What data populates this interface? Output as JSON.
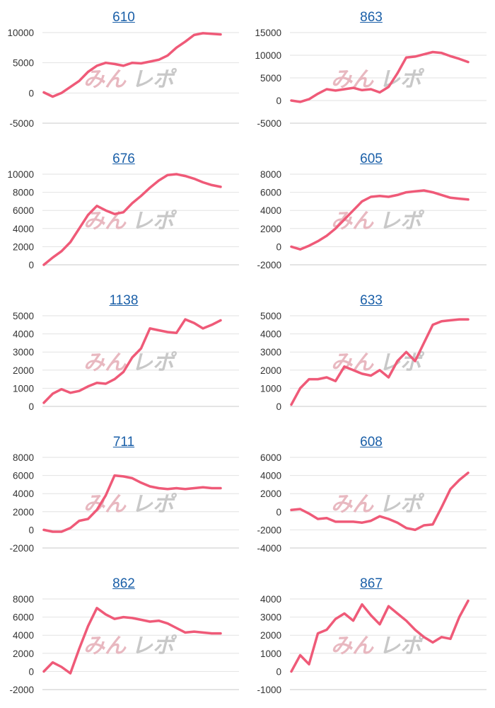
{
  "chart_data": [
    {
      "type": "line",
      "title": "610",
      "ylim": [
        -5000,
        10000
      ],
      "yticks": [
        "10000",
        "5000",
        "0",
        "-5000"
      ],
      "x": [
        0,
        5,
        10,
        15,
        20,
        25,
        30,
        35,
        40,
        45,
        50,
        55,
        60,
        65,
        70,
        75,
        80,
        85,
        90,
        95,
        100
      ],
      "values": [
        100,
        -600,
        0,
        1000,
        2000,
        3500,
        4500,
        5000,
        4800,
        4500,
        5000,
        4900,
        5200,
        5500,
        6200,
        7500,
        8500,
        9600,
        9900,
        9800,
        9700
      ]
    },
    {
      "type": "line",
      "title": "863",
      "ylim": [
        -5000,
        15000
      ],
      "yticks": [
        "15000",
        "10000",
        "5000",
        "0",
        "-5000"
      ],
      "x": [
        0,
        5,
        10,
        15,
        20,
        25,
        30,
        35,
        40,
        45,
        50,
        55,
        60,
        65,
        70,
        75,
        80,
        85,
        90,
        95,
        100
      ],
      "values": [
        0,
        -300,
        300,
        1500,
        2500,
        2200,
        2500,
        2800,
        2300,
        2500,
        1800,
        3000,
        6000,
        9500,
        9700,
        10200,
        10700,
        10500,
        9800,
        9200,
        8500
      ]
    },
    {
      "type": "line",
      "title": "676",
      "ylim": [
        0,
        10000
      ],
      "yticks": [
        "10000",
        "8000",
        "6000",
        "4000",
        "2000",
        "0"
      ],
      "x": [
        0,
        5,
        10,
        15,
        20,
        25,
        30,
        35,
        40,
        45,
        50,
        55,
        60,
        65,
        70,
        75,
        80,
        85,
        90,
        95,
        100
      ],
      "values": [
        0,
        800,
        1500,
        2500,
        4000,
        5500,
        6500,
        6000,
        5600,
        5800,
        6800,
        7600,
        8500,
        9300,
        9900,
        10000,
        9800,
        9500,
        9100,
        8800,
        8600
      ]
    },
    {
      "type": "line",
      "title": "605",
      "ylim": [
        -2000,
        8000
      ],
      "yticks": [
        "8000",
        "6000",
        "4000",
        "2000",
        "0",
        "-2000"
      ],
      "x": [
        0,
        5,
        10,
        15,
        20,
        25,
        30,
        35,
        40,
        45,
        50,
        55,
        60,
        65,
        70,
        75,
        80,
        85,
        90,
        95,
        100
      ],
      "values": [
        0,
        -300,
        100,
        600,
        1200,
        2000,
        3000,
        4000,
        5000,
        5500,
        5600,
        5500,
        5700,
        6000,
        6100,
        6200,
        6000,
        5700,
        5400,
        5300,
        5200
      ]
    },
    {
      "type": "line",
      "title": "1138",
      "ylim": [
        0,
        5000
      ],
      "yticks": [
        "5000",
        "4000",
        "3000",
        "2000",
        "1000",
        "0"
      ],
      "x": [
        0,
        5,
        10,
        15,
        20,
        25,
        30,
        35,
        40,
        45,
        50,
        55,
        60,
        65,
        70,
        75,
        80,
        85,
        90,
        95,
        100
      ],
      "values": [
        200,
        700,
        950,
        750,
        850,
        1100,
        1300,
        1250,
        1500,
        1900,
        2700,
        3200,
        4300,
        4200,
        4100,
        4050,
        4800,
        4600,
        4300,
        4500,
        4750
      ]
    },
    {
      "type": "line",
      "title": "633",
      "ylim": [
        0,
        5000
      ],
      "yticks": [
        "5000",
        "4000",
        "3000",
        "2000",
        "1000",
        "0"
      ],
      "x": [
        0,
        5,
        10,
        15,
        20,
        25,
        30,
        35,
        40,
        45,
        50,
        55,
        60,
        65,
        70,
        75,
        80,
        85,
        90,
        95,
        100
      ],
      "values": [
        100,
        1000,
        1500,
        1500,
        1600,
        1400,
        2200,
        2000,
        1800,
        1700,
        2000,
        1600,
        2500,
        3000,
        2500,
        3500,
        4500,
        4700,
        4750,
        4800,
        4800
      ]
    },
    {
      "type": "line",
      "title": "711",
      "ylim": [
        -2000,
        8000
      ],
      "yticks": [
        "8000",
        "6000",
        "4000",
        "2000",
        "0",
        "-2000"
      ],
      "x": [
        0,
        5,
        10,
        15,
        20,
        25,
        30,
        35,
        40,
        45,
        50,
        55,
        60,
        65,
        70,
        75,
        80,
        85,
        90,
        95,
        100
      ],
      "values": [
        0,
        -200,
        -200,
        200,
        1000,
        1200,
        2200,
        3800,
        6000,
        5900,
        5700,
        5200,
        4800,
        4600,
        4500,
        4600,
        4500,
        4600,
        4700,
        4600,
        4600
      ]
    },
    {
      "type": "line",
      "title": "608",
      "ylim": [
        -4000,
        6000
      ],
      "yticks": [
        "6000",
        "4000",
        "2000",
        "0",
        "-2000",
        "-4000"
      ],
      "x": [
        0,
        5,
        10,
        15,
        20,
        25,
        30,
        35,
        40,
        45,
        50,
        55,
        60,
        65,
        70,
        75,
        80,
        85,
        90,
        95,
        100
      ],
      "values": [
        200,
        300,
        -200,
        -800,
        -700,
        -1100,
        -1100,
        -1100,
        -1200,
        -1000,
        -500,
        -800,
        -1200,
        -1800,
        -2000,
        -1500,
        -1400,
        500,
        2500,
        3500,
        4300
      ]
    },
    {
      "type": "line",
      "title": "862",
      "ylim": [
        -2000,
        8000
      ],
      "yticks": [
        "8000",
        "6000",
        "4000",
        "2000",
        "0",
        "-2000"
      ],
      "x": [
        0,
        5,
        10,
        15,
        20,
        25,
        30,
        35,
        40,
        45,
        50,
        55,
        60,
        65,
        70,
        75,
        80,
        85,
        90,
        95,
        100
      ],
      "values": [
        0,
        1000,
        500,
        -200,
        2500,
        5000,
        7000,
        6300,
        5800,
        6000,
        5900,
        5700,
        5500,
        5600,
        5300,
        4800,
        4300,
        4400,
        4300,
        4200,
        4200
      ]
    },
    {
      "type": "line",
      "title": "867",
      "ylim": [
        -1000,
        4000
      ],
      "yticks": [
        "4000",
        "3000",
        "2000",
        "1000",
        "0",
        "-1000"
      ],
      "x": [
        0,
        5,
        10,
        15,
        20,
        25,
        30,
        35,
        40,
        45,
        50,
        55,
        60,
        65,
        70,
        75,
        80,
        85,
        90,
        95,
        100
      ],
      "values": [
        0,
        900,
        400,
        2100,
        2300,
        2900,
        3200,
        2800,
        3700,
        3100,
        2600,
        3600,
        3200,
        2800,
        2300,
        1900,
        1600,
        1900,
        1800,
        3000,
        3900
      ]
    }
  ],
  "style": {
    "line_color": "#ef5a78",
    "grid_color": "#e2e2e2",
    "axis_color": "#c8c8c8",
    "title_color": "#1a5fa8",
    "watermark_pink": "#e8b8c0",
    "watermark_gray": "#c8c8c8"
  },
  "watermark": {
    "pink_part": "みん",
    "gray_part": "レポ"
  }
}
